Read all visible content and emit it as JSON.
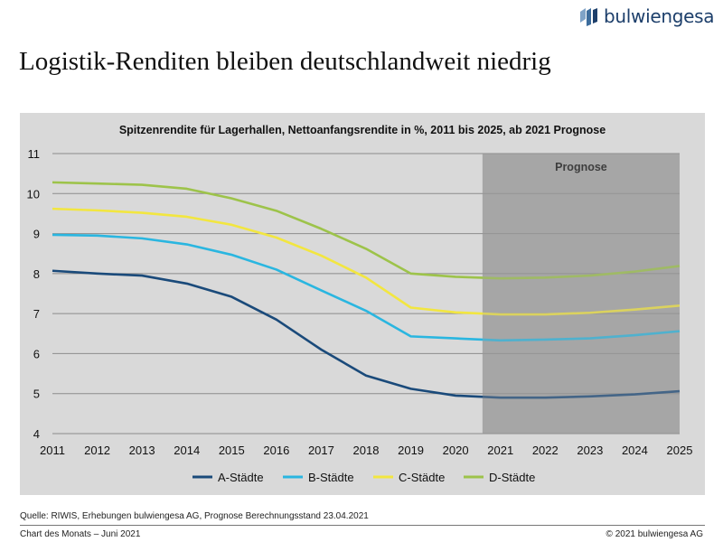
{
  "brand": {
    "name": "bulwiengesa"
  },
  "page_title": "Logistik-Renditen bleiben deutschlandweit niedrig",
  "chart_data": {
    "type": "line",
    "title": "Spitzenrendite für Lagerhallen, Nettoanfangsrendite in %, 2011 bis 2025, ab 2021 Prognose",
    "xlabel": "",
    "ylabel": "",
    "categories": [
      "2011",
      "2012",
      "2013",
      "2014",
      "2015",
      "2016",
      "2017",
      "2018",
      "2019",
      "2020",
      "2021",
      "2022",
      "2023",
      "2024",
      "2025"
    ],
    "ylim": [
      4,
      11
    ],
    "yticks": [
      "4",
      "5",
      "6",
      "7",
      "8",
      "9",
      "10",
      "11"
    ],
    "grid": true,
    "legend": "bottom",
    "forecast_band": {
      "label": "Prognose",
      "from": 2020.6,
      "to": 2025,
      "color": "#a6a6a6"
    },
    "series": [
      {
        "name": "A-Städte",
        "color": "#1a4a7a",
        "values": [
          8.07,
          8.0,
          7.95,
          7.75,
          7.42,
          6.85,
          6.1,
          5.45,
          5.12,
          4.95,
          4.9,
          4.9,
          4.93,
          4.98,
          5.06
        ]
      },
      {
        "name": "B-Städte",
        "color": "#2ab6e0",
        "values": [
          8.97,
          8.95,
          8.88,
          8.73,
          8.47,
          8.1,
          7.58,
          7.07,
          6.43,
          6.38,
          6.33,
          6.35,
          6.38,
          6.46,
          6.56
        ]
      },
      {
        "name": "C-Städte",
        "color": "#f2e640",
        "values": [
          9.62,
          9.58,
          9.52,
          9.42,
          9.22,
          8.9,
          8.45,
          7.9,
          7.15,
          7.03,
          6.98,
          6.98,
          7.02,
          7.1,
          7.2
        ]
      },
      {
        "name": "D-Städte",
        "color": "#9dc34a",
        "values": [
          10.28,
          10.25,
          10.22,
          10.12,
          9.88,
          9.57,
          9.12,
          8.62,
          8.0,
          7.92,
          7.88,
          7.9,
          7.95,
          8.05,
          8.19
        ]
      }
    ]
  },
  "footer": {
    "source": "Quelle: RIWIS, Erhebungen bulwiengesa AG, Prognose Berechnungsstand 23.04.2021",
    "left": "Chart des Monats – Juni 2021",
    "right": "© 2021 bulwiengesa AG"
  }
}
